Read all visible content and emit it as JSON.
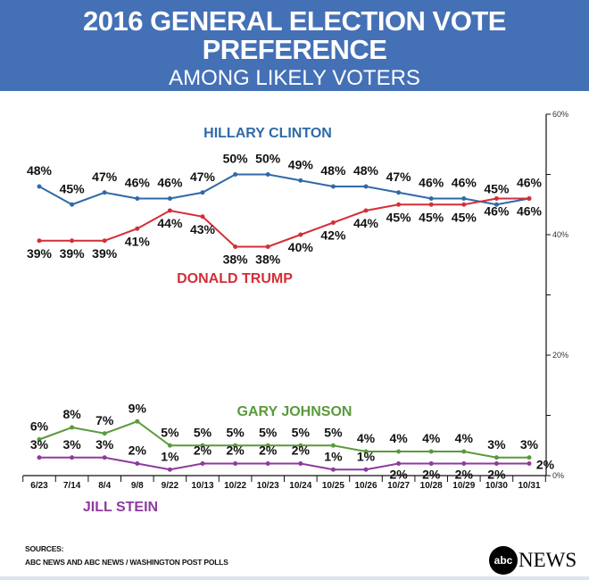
{
  "header": {
    "title": "2016 GENERAL ELECTION VOTE PREFERENCE",
    "subtitle": "AMONG LIKELY VOTERS"
  },
  "chart_data": {
    "type": "line",
    "title": "2016 GENERAL ELECTION VOTE PREFERENCE",
    "subtitle": "AMONG LIKELY VOTERS",
    "categories": [
      "6/23",
      "7/14",
      "8/4",
      "9/8",
      "9/22",
      "10/13",
      "10/22",
      "10/23",
      "10/24",
      "10/25",
      "10/26",
      "10/27",
      "10/28",
      "10/29",
      "10/30",
      "10/31"
    ],
    "ylim": [
      0,
      60
    ],
    "yticks": [
      "0%",
      "20%",
      "40%",
      "60%"
    ],
    "y_axis_position": "right",
    "grid": false,
    "series": [
      {
        "name": "HILLARY CLINTON",
        "color": "#2f6aa8",
        "label_pos": "above",
        "values": [
          48,
          45,
          47,
          46,
          46,
          47,
          50,
          50,
          49,
          48,
          48,
          47,
          46,
          46,
          45,
          46
        ]
      },
      {
        "name": "DONALD TRUMP",
        "color": "#d42e37",
        "label_pos": "below",
        "values": [
          39,
          39,
          39,
          41,
          44,
          43,
          38,
          38,
          40,
          42,
          44,
          45,
          45,
          45,
          46,
          46
        ]
      },
      {
        "name": "GARY JOHNSON",
        "color": "#5a9a3c",
        "label_pos": "above",
        "values": [
          6,
          8,
          7,
          9,
          5,
          5,
          5,
          5,
          5,
          5,
          4,
          4,
          4,
          4,
          3,
          3
        ]
      },
      {
        "name": "JILL STEIN",
        "color": "#8e3a9e",
        "label_pos": "above",
        "values": [
          3,
          3,
          3,
          2,
          1,
          2,
          2,
          2,
          2,
          1,
          1,
          2,
          2,
          2,
          2,
          2
        ]
      }
    ]
  },
  "footer": {
    "sources_label": "SOURCES:",
    "sources": "ABC NEWS AND ABC NEWS / WASHINGTON POST POLLS",
    "logo": "abcNEWS"
  }
}
